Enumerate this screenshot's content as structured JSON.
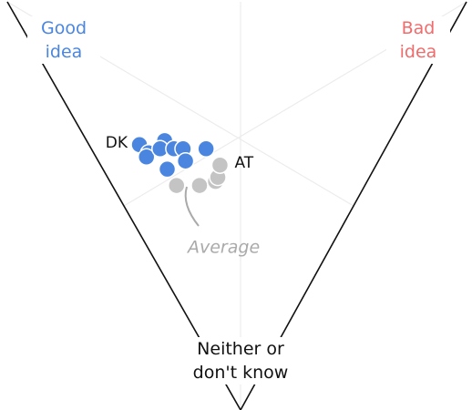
{
  "chart_data": {
    "type": "ternary",
    "corners": [
      {
        "label": "Good idea",
        "color": "#4a86e0"
      },
      {
        "label": "Bad idea",
        "color": "#f06b6b"
      },
      {
        "label": "Neither or don't know",
        "color": "#111111"
      }
    ],
    "series": [
      {
        "color": "#4a86e0",
        "values": [
          [
            54,
            11,
            35
          ],
          [
            51,
            12,
            37
          ],
          [
            51,
            11,
            38
          ],
          [
            49,
            17,
            34
          ],
          [
            49,
            15,
            36
          ],
          [
            46,
            18,
            36
          ],
          [
            44,
            20,
            36
          ],
          [
            39,
            25,
            36
          ],
          [
            45,
            14,
            41
          ],
          [
            42,
            19,
            39
          ]
        ],
        "labels": [
          "DK",
          null,
          null,
          null,
          null,
          null,
          null,
          null,
          null,
          null
        ]
      },
      {
        "color": "#c4c4c4",
        "values": [
          [
            41,
            14,
            45
          ],
          [
            36,
            19,
            45
          ],
          [
            33,
            23,
            44
          ],
          [
            33,
            24,
            43
          ],
          [
            34,
            26,
            40
          ]
        ],
        "labels": [
          null,
          null,
          null,
          null,
          "AT"
        ]
      }
    ],
    "annotation": "Average"
  }
}
